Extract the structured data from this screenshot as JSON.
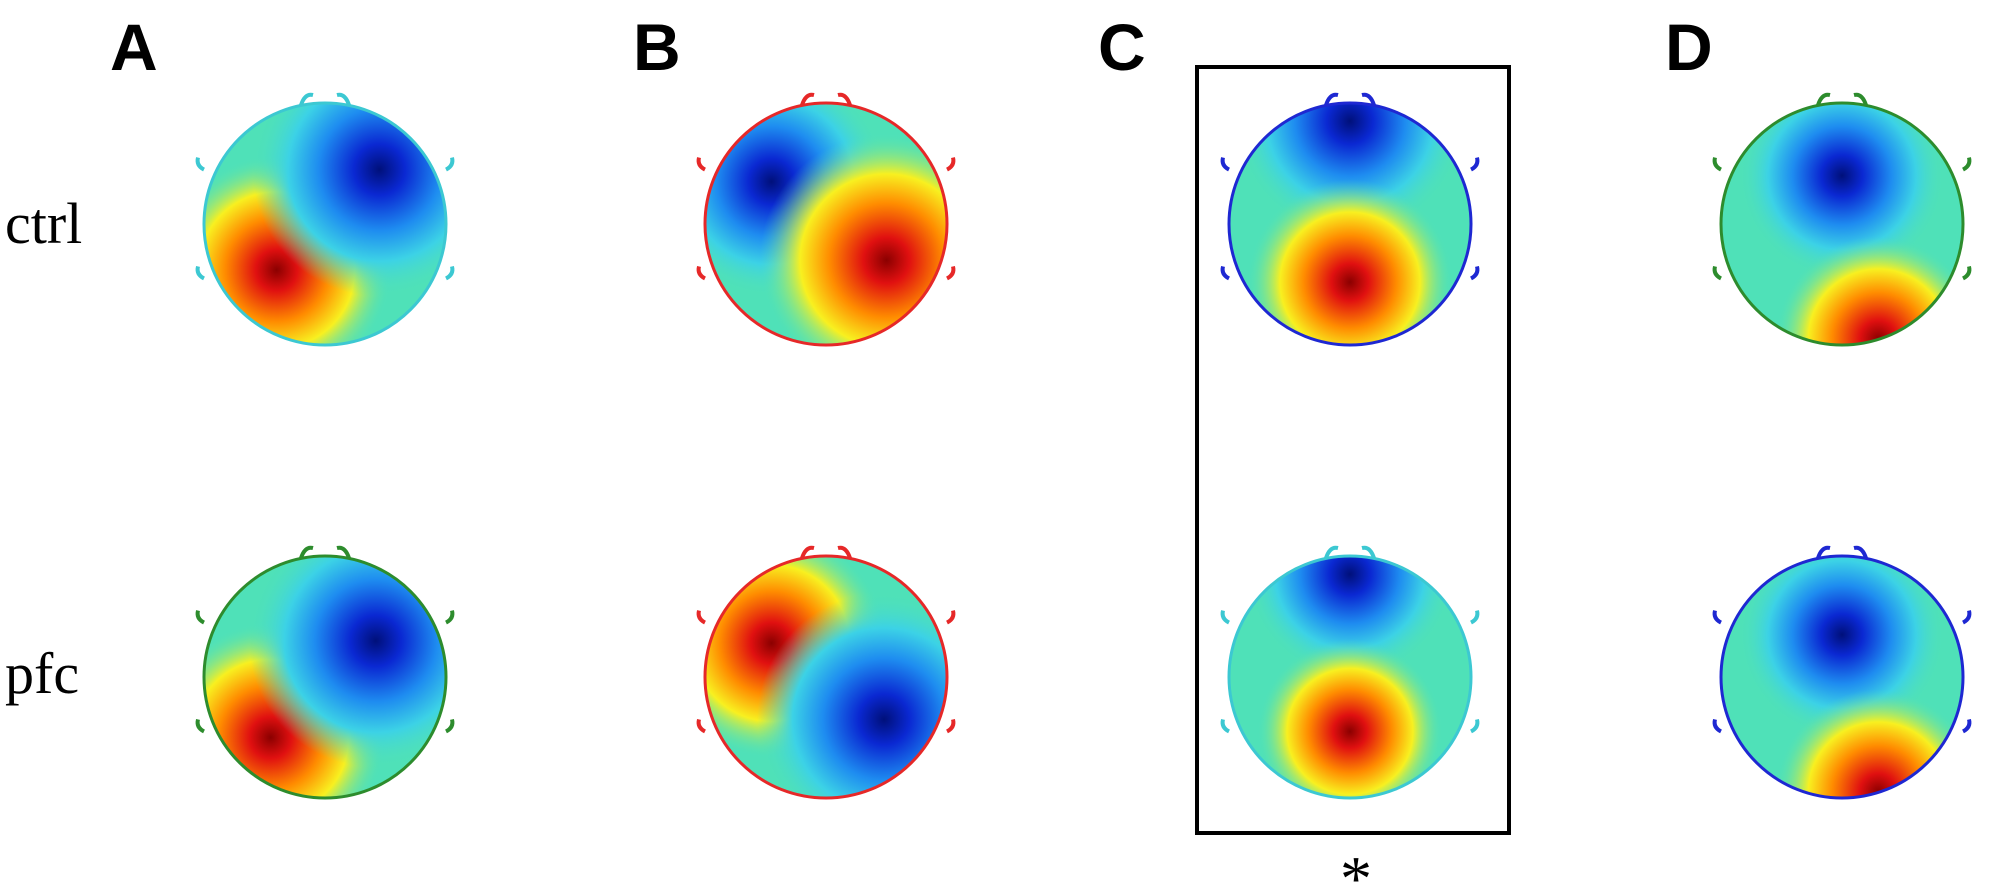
{
  "panels": [
    {
      "label": "A",
      "maps": [
        {
          "outline": "#3cc8d2",
          "poles": [
            {
              "c": "#d21e1e",
              "w": 1
            },
            {
              "c": "#0a32d2",
              "w": 1
            }
          ]
        },
        {
          "outline": "#2d8c2d",
          "poles": [
            {
              "c": "#d21e1e",
              "w": 1
            },
            {
              "c": "#0a32d2",
              "w": 1
            }
          ]
        }
      ]
    },
    {
      "label": "B",
      "maps": [
        {
          "outline": "#e62828",
          "poles": [
            {
              "c": "#0a3cd2",
              "w": 1
            },
            {
              "c": "#d21e1e",
              "w": 1
            }
          ]
        },
        {
          "outline": "#e62828",
          "poles": [
            {
              "c": "#d21e1e",
              "w": 1
            },
            {
              "c": "#0a28c8",
              "w": 1
            }
          ]
        }
      ]
    },
    {
      "label": "C",
      "maps": [
        {
          "outline": "#1e28d2",
          "poles": [
            {
              "c": "#0a1ec8",
              "w": 1
            },
            {
              "c": "#e61e1e",
              "w": 1
            }
          ]
        },
        {
          "outline": "#3cc8d2",
          "poles": [
            {
              "c": "#1e3cd2",
              "w": 0.9
            },
            {
              "c": "#f0a014",
              "w": 0.9
            }
          ]
        }
      ]
    },
    {
      "label": "D",
      "maps": [
        {
          "outline": "#2d8c2d",
          "poles": [
            {
              "c": "#0a28c8",
              "w": 1
            },
            {
              "c": "#d21e1e",
              "w": 1
            }
          ]
        },
        {
          "outline": "#1e28d2",
          "poles": [
            {
              "c": "#0a28c8",
              "w": 1
            },
            {
              "c": "#d21e1e",
              "w": 1
            }
          ]
        }
      ]
    }
  ],
  "rows": [
    {
      "label": "ctrl"
    },
    {
      "label": "pfc"
    }
  ],
  "highlight": {
    "panel": "C",
    "marker": "*"
  }
}
